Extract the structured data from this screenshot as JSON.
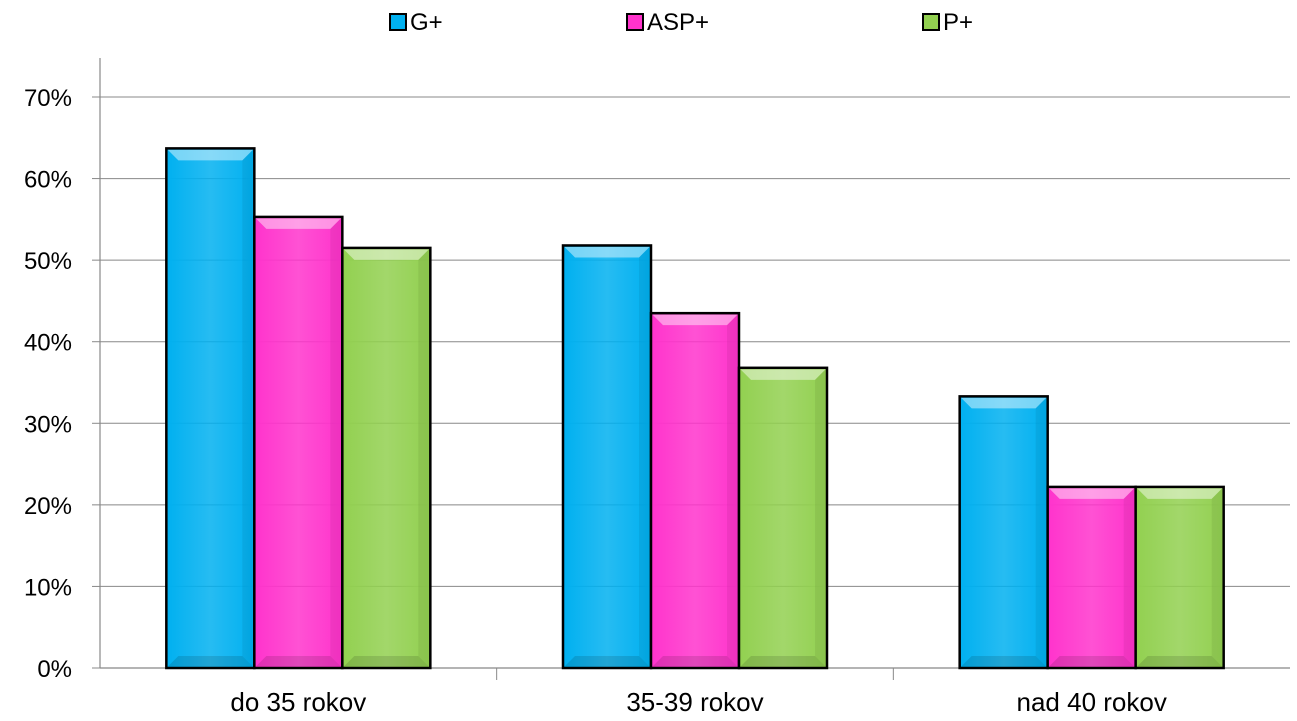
{
  "chart_data": {
    "type": "bar",
    "categories": [
      "do 35 rokov",
      "35-39 rokov",
      "nad 40 rokov"
    ],
    "series": [
      {
        "name": "G+",
        "values": [
          63.7,
          51.8,
          33.3
        ],
        "color": "#00B0F0"
      },
      {
        "name": "ASP+",
        "values": [
          55.3,
          43.5,
          22.2
        ],
        "color": "#FF33CC"
      },
      {
        "name": "P+",
        "values": [
          51.5,
          36.8,
          22.2
        ],
        "color": "#92D050"
      }
    ],
    "ylim": [
      0,
      70
    ],
    "yticks": [
      0,
      10,
      20,
      30,
      40,
      50,
      60,
      70
    ],
    "ytick_labels": [
      "0%",
      "10%",
      "20%",
      "30%",
      "40%",
      "50%",
      "60%",
      "70%"
    ],
    "grid": true,
    "legend_position": "top-center",
    "title": "",
    "xlabel": "",
    "ylabel": ""
  }
}
